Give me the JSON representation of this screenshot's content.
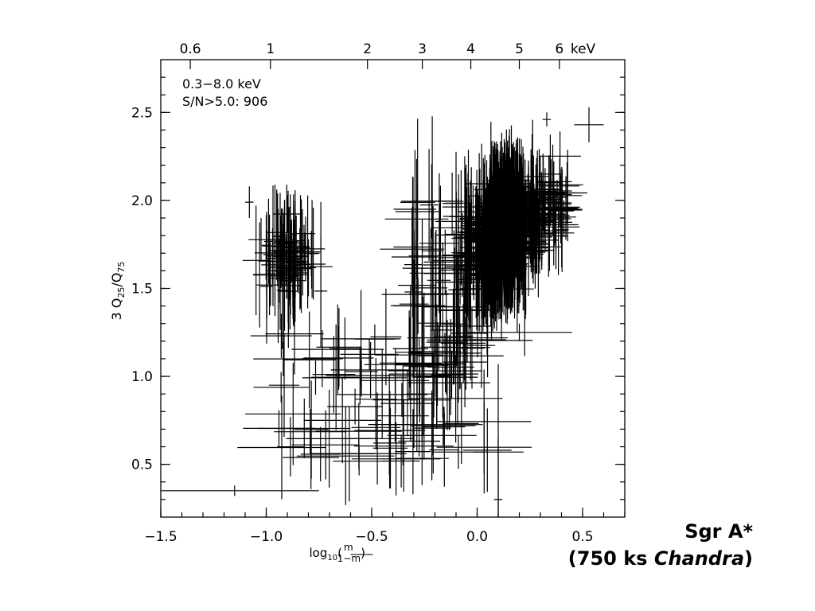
{
  "chart_data": {
    "type": "scatter",
    "xlabel": "log10(m/(1−m))",
    "ylabel": "3 Q25/Q75",
    "xlim": [
      -1.5,
      0.7
    ],
    "ylim": [
      0.2,
      2.8
    ],
    "x_ticks": [
      "−1.5",
      "−1.0",
      "−0.5",
      "0.0",
      "0.5"
    ],
    "x_tick_values": [
      -1.5,
      -1.0,
      -0.5,
      0.0,
      0.5
    ],
    "y_ticks": [
      "0.5",
      "1.0",
      "1.5",
      "2.0",
      "2.5"
    ],
    "y_tick_values": [
      0.5,
      1.0,
      1.5,
      2.0,
      2.5
    ],
    "top_axis_ticks": [
      {
        "label": "0.6",
        "x": -1.36
      },
      {
        "label": "1",
        "x": -0.98
      },
      {
        "label": "2",
        "x": -0.52
      },
      {
        "label": "3",
        "x": -0.26
      },
      {
        "label": "4",
        "x": -0.03
      },
      {
        "label": "5",
        "x": 0.2
      },
      {
        "label": "6",
        "x": 0.39
      }
    ],
    "top_axis_unit": "keV",
    "annotation_lines": [
      "0.3−8.0 keV",
      "S/N>5.0: 906"
    ],
    "marker": "cross with error bars",
    "grid": false,
    "color": "#000000",
    "n_points": 906
  },
  "caption": {
    "line1": "Sgr A*",
    "line2_pre": "(750 ks ",
    "line2_italic": "Chandra",
    "line2_post": ")"
  }
}
